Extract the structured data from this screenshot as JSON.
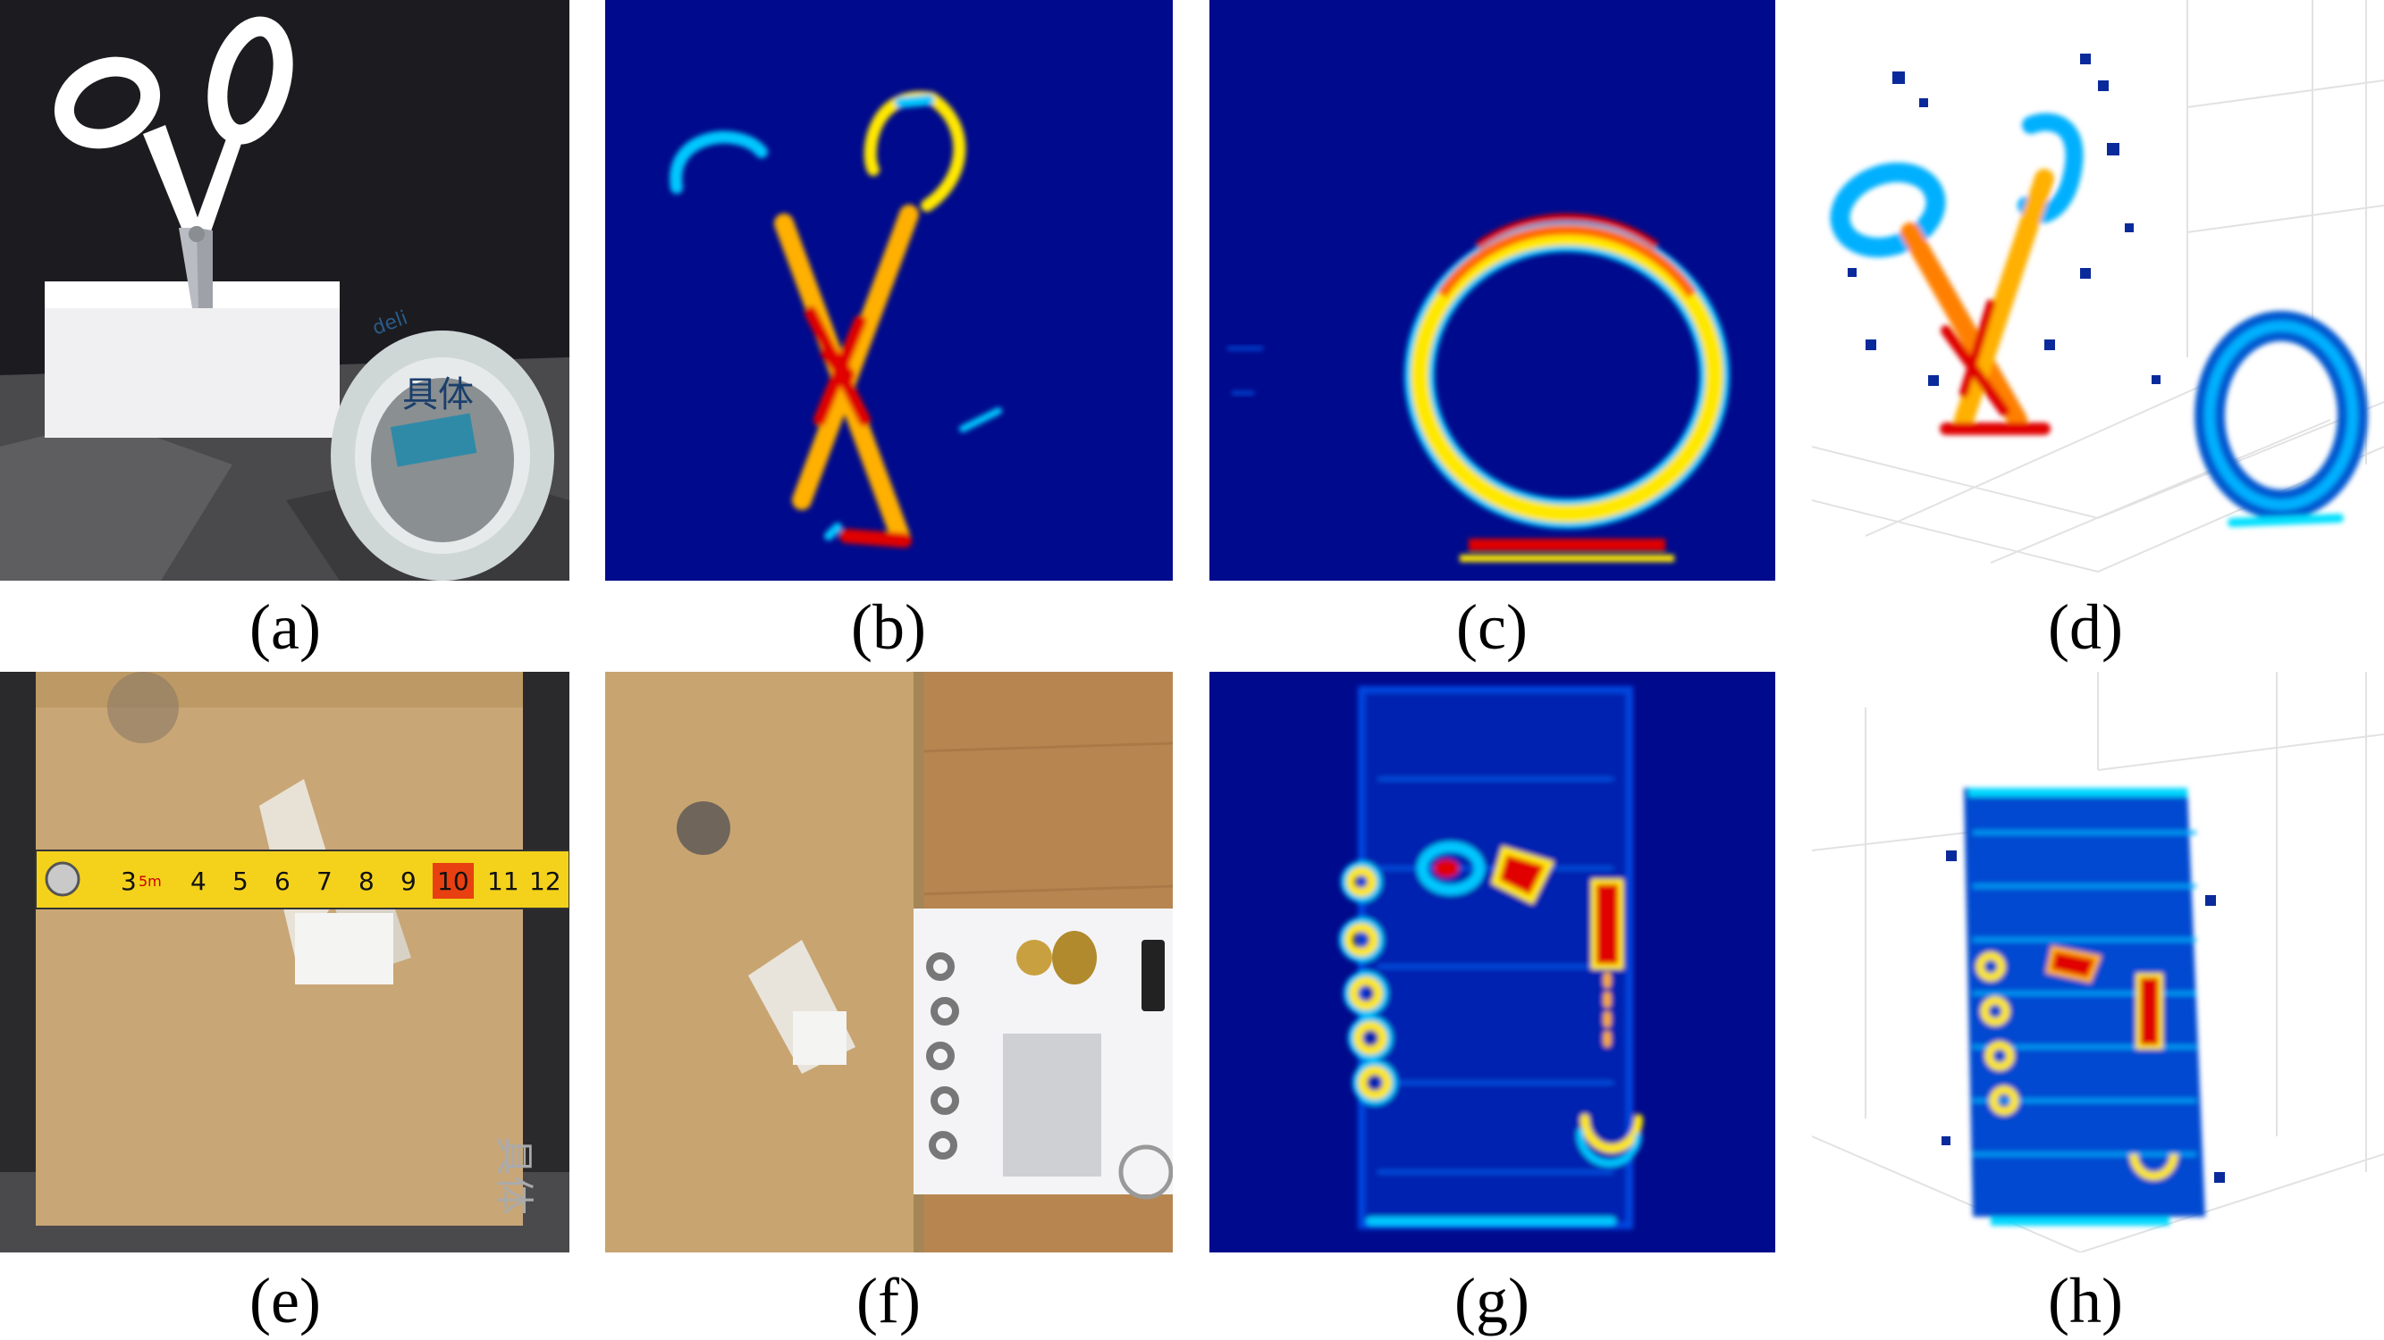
{
  "figure": {
    "panels": [
      {
        "id": "a",
        "label": "(a)",
        "content": "photo-scissors-tape"
      },
      {
        "id": "b",
        "label": "(b)",
        "content": "heatmap-scissors"
      },
      {
        "id": "c",
        "label": "(c)",
        "content": "heatmap-tape-ring"
      },
      {
        "id": "d",
        "label": "(d)",
        "content": "pointcloud-scissors-tape"
      },
      {
        "id": "e",
        "label": "(e)",
        "content": "photo-box-tape-measure"
      },
      {
        "id": "f",
        "label": "(f)",
        "content": "photo-box-hidden-items"
      },
      {
        "id": "g",
        "label": "(g)",
        "content": "heatmap-hidden-items"
      },
      {
        "id": "h",
        "label": "(h)",
        "content": "pointcloud-box"
      }
    ],
    "photo_text": {
      "tape_brand": "deli",
      "tape_print": "具体",
      "ruler_marks": [
        "3",
        "5m",
        "4",
        "5",
        "6",
        "7",
        "8",
        "9",
        "10",
        "11",
        "12"
      ]
    },
    "colors": {
      "heatmap_background": "#000a8c",
      "heat_low": "#00c8ff",
      "heat_mid": "#ffe800",
      "heat_high": "#e00000",
      "cardboard": "#c9a676",
      "ruler_yellow": "#f4d21c"
    }
  }
}
